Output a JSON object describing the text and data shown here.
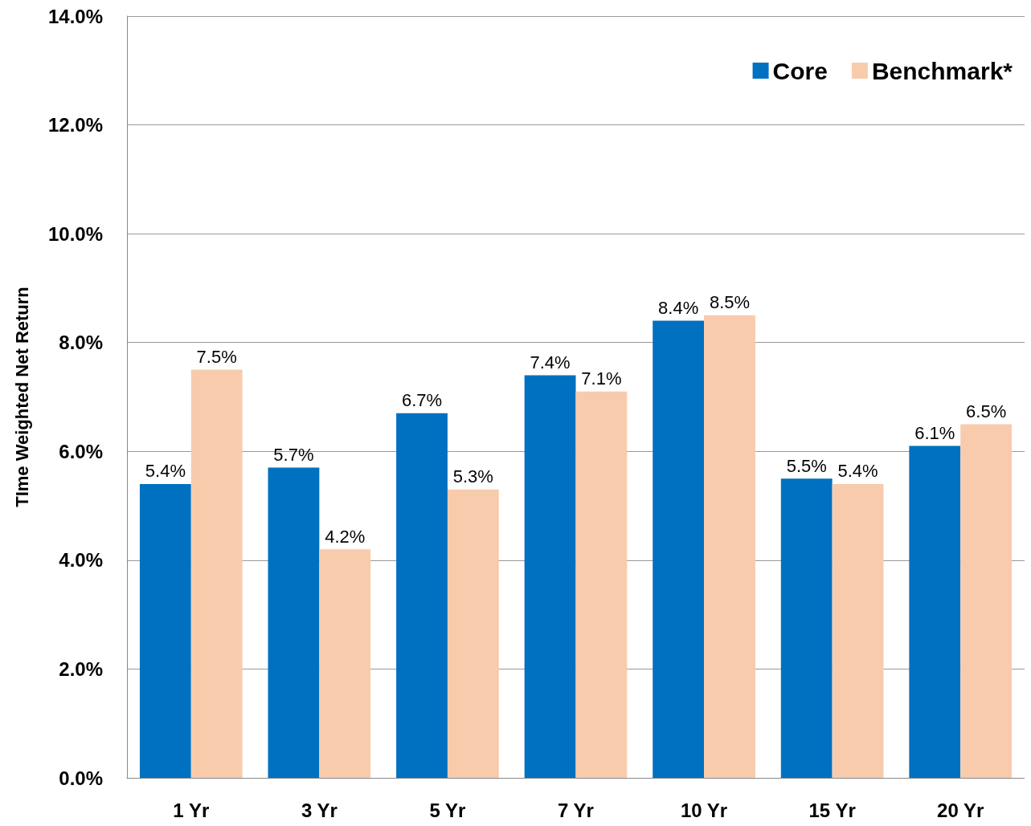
{
  "chart_data": {
    "type": "bar",
    "ylabel": "TIme Weighted Net Return",
    "categories": [
      "1 Yr",
      "3 Yr",
      "5 Yr",
      "7 Yr",
      "10 Yr",
      "15 Yr",
      "20 Yr"
    ],
    "series": [
      {
        "name": "Core",
        "color": "#0070c0",
        "values": [
          5.4,
          5.7,
          6.7,
          7.4,
          8.4,
          5.5,
          6.1
        ],
        "value_labels": [
          "5.4%",
          "5.7%",
          "6.7%",
          "7.4%",
          "8.4%",
          "5.5%",
          "6.1%"
        ]
      },
      {
        "name": "Benchmark*",
        "color": "#f8cbad",
        "values": [
          7.5,
          4.2,
          5.3,
          7.1,
          8.5,
          5.4,
          6.5
        ],
        "value_labels": [
          "7.5%",
          "4.2%",
          "5.3%",
          "7.1%",
          "8.5%",
          "5.4%",
          "6.5%"
        ]
      }
    ],
    "ylim": [
      0,
      14
    ],
    "yticks": [
      {
        "value": 0,
        "label": "0.0%"
      },
      {
        "value": 2,
        "label": "2.0%"
      },
      {
        "value": 4,
        "label": "4.0%"
      },
      {
        "value": 6,
        "label": "6.0%"
      },
      {
        "value": 8,
        "label": "8.0%"
      },
      {
        "value": 10,
        "label": "10.0%"
      },
      {
        "value": 12,
        "label": "12.0%"
      },
      {
        "value": 14,
        "label": "14.0%"
      }
    ],
    "grid": "y",
    "legend": "top right"
  }
}
